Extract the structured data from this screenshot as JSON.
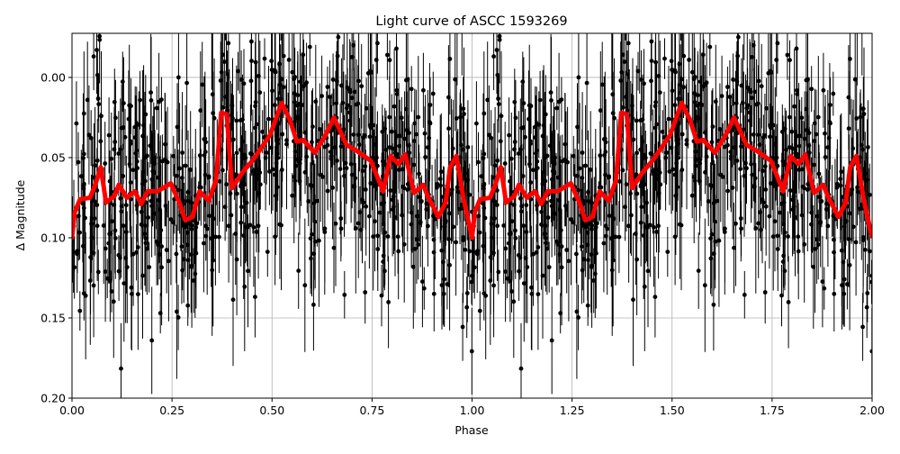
{
  "chart_data": {
    "type": "scatter",
    "title": "Light curve of ASCC 1593269",
    "xlabel": "Phase",
    "ylabel": "Δ Magnitude",
    "xlim": [
      0.0,
      2.0
    ],
    "ylim": [
      0.2,
      -0.0275
    ],
    "y_inverted": true,
    "grid": true,
    "legend": null,
    "x_ticks": [
      0.0,
      0.25,
      0.5,
      0.75,
      1.0,
      1.25,
      1.5,
      1.75,
      2.0
    ],
    "x_tick_labels": [
      "0.00",
      "0.25",
      "0.50",
      "0.75",
      "1.00",
      "1.25",
      "1.50",
      "1.75",
      "2.00"
    ],
    "y_ticks": [
      0.0,
      0.05,
      0.1,
      0.15,
      0.2
    ],
    "y_tick_labels": [
      "0.00",
      "0.05",
      "0.10",
      "0.15",
      "0.20"
    ],
    "series": [
      {
        "name": "observations",
        "kind": "errorbar-scatter",
        "color": "#000000",
        "description": "Dense phase-folded photometry, Δmag scattered roughly ±0.06 around the binned curve, typical error bars ~0.02–0.04, repeated over phase 0–2",
        "approx_count": 1500
      },
      {
        "name": "binned mean",
        "kind": "line",
        "color": "#ff0000",
        "linewidth": 5,
        "period_phase": 1.0,
        "phase": [
          0.0,
          0.007,
          0.02,
          0.045,
          0.058,
          0.072,
          0.085,
          0.106,
          0.117,
          0.137,
          0.157,
          0.173,
          0.189,
          0.214,
          0.247,
          0.27,
          0.283,
          0.301,
          0.319,
          0.342,
          0.36,
          0.373,
          0.387,
          0.4,
          0.427,
          0.454,
          0.495,
          0.524,
          0.544,
          0.562,
          0.578,
          0.607,
          0.634,
          0.655,
          0.686,
          0.713,
          0.747,
          0.778,
          0.796,
          0.816,
          0.833,
          0.855,
          0.878,
          0.889,
          0.916,
          0.934,
          0.945,
          0.961,
          0.979,
          0.999
        ],
        "values": [
          0.1,
          0.084,
          0.076,
          0.075,
          0.067,
          0.056,
          0.078,
          0.074,
          0.067,
          0.075,
          0.071,
          0.079,
          0.071,
          0.071,
          0.066,
          0.079,
          0.089,
          0.087,
          0.071,
          0.077,
          0.064,
          0.022,
          0.023,
          0.069,
          0.059,
          0.051,
          0.036,
          0.016,
          0.026,
          0.04,
          0.039,
          0.047,
          0.036,
          0.025,
          0.042,
          0.046,
          0.052,
          0.071,
          0.049,
          0.054,
          0.048,
          0.072,
          0.067,
          0.074,
          0.087,
          0.078,
          0.056,
          0.049,
          0.076,
          0.099
        ]
      }
    ]
  },
  "colors": {
    "grid": "#b0b0b0",
    "axes": "#000000",
    "points": "#000000",
    "curve": "#ff0000",
    "background": "#ffffff"
  }
}
